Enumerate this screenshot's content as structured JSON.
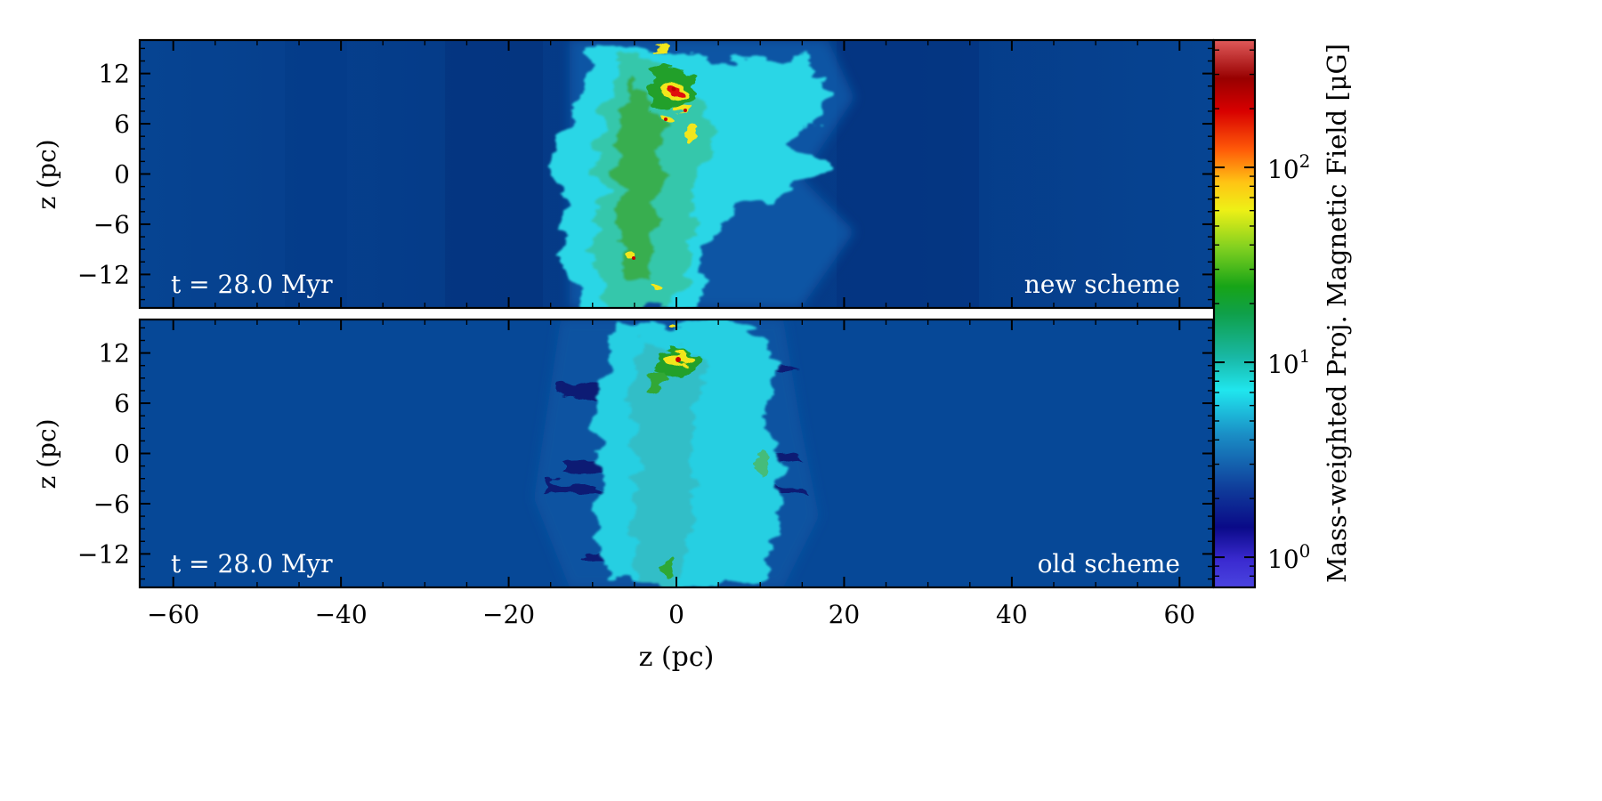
{
  "figure": {
    "xlabel": "z  (pc)",
    "colorbar_label": "Mass-weighted Proj. Magnetic Field [μG]"
  },
  "chart_data": {
    "type": "heatmap",
    "colormap": "nipy_spectral-like (violet → blue → cyan → green → yellow → red)",
    "x": {
      "label": "z  (pc)",
      "range": [
        -64,
        64
      ],
      "ticks": [
        -60,
        -40,
        -20,
        0,
        20,
        40,
        60
      ],
      "tick_labels": [
        "−60",
        "−40",
        "−20",
        "0",
        "20",
        "40",
        "60"
      ]
    },
    "colorbar": {
      "label": "Mass-weighted Proj. Magnetic Field [μG]",
      "scale": "log",
      "range": [
        0.7,
        450
      ],
      "ticks": [
        1,
        10,
        100
      ],
      "tick_labels": [
        "10",
        "10",
        "10"
      ],
      "tick_exponents": [
        "0",
        "1",
        "2"
      ]
    },
    "panels": [
      {
        "name": "new scheme",
        "time_label": "t = 28.0 Myr",
        "ylabel": "z (pc)",
        "y": {
          "range": [
            -16,
            16
          ],
          "ticks": [
            -12,
            -6,
            0,
            6,
            12
          ],
          "tick_labels": [
            "−12",
            "−6",
            "0",
            "6",
            "12"
          ]
        },
        "background_field_uG": 1.8,
        "features": [
          {
            "x": -1,
            "y": 0,
            "width_pc": 26,
            "field_uG": 5,
            "kind": "turbulent cyan layer"
          },
          {
            "x": -3,
            "y": 2,
            "width_pc": 10,
            "field_uG": 10,
            "kind": "green filaments"
          },
          {
            "x": 0,
            "y": 10,
            "field_uG": 300,
            "kind": "peak"
          },
          {
            "x": 1,
            "y": 7,
            "field_uG": 40,
            "kind": "knot"
          },
          {
            "x": -1,
            "y": 6,
            "field_uG": 40,
            "kind": "knot"
          },
          {
            "x": -5,
            "y": -10,
            "field_uG": 40,
            "kind": "knot"
          }
        ]
      },
      {
        "name": "old scheme",
        "time_label": "t = 28.0 Myr",
        "ylabel": "z (pc)",
        "y": {
          "range": [
            -16,
            16
          ],
          "ticks": [
            -12,
            -6,
            0,
            6,
            12
          ],
          "tick_labels": [
            "−12",
            "−6",
            "0",
            "6",
            "12"
          ]
        },
        "background_field_uG": 2.2,
        "features": [
          {
            "x": -1,
            "y": 0,
            "width_pc": 22,
            "field_uG": 4,
            "kind": "turbulent cyan layer"
          },
          {
            "x": 0,
            "y": 10,
            "field_uG": 60,
            "kind": "knot"
          },
          {
            "x": -1,
            "y": -12,
            "field_uG": 12,
            "kind": "green filament"
          }
        ]
      }
    ]
  }
}
